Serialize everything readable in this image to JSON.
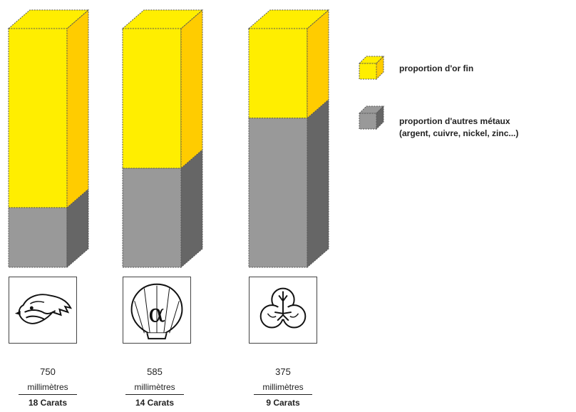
{
  "chart_data": {
    "type": "bar",
    "stacked": true,
    "categories": [
      "18 Carats",
      "14 Carats",
      "9 Carats"
    ],
    "series": [
      {
        "name": "proportion d'autres métaux",
        "values": [
          250,
          415,
          625
        ],
        "color": "#999999",
        "side_color": "#666666"
      },
      {
        "name": "proportion d'or fin",
        "values": [
          750,
          585,
          375
        ],
        "color": "#ffee00",
        "side_color": "#ffcc00"
      }
    ],
    "ylim": [
      0,
      1000
    ],
    "grid": false,
    "legend_position": "right",
    "bars": [
      {
        "fineness": "750",
        "unit": "millimètres",
        "carats": "18 Carats",
        "hallmark_icon": "eagle-head-icon"
      },
      {
        "fineness": "585",
        "unit": "millimètres",
        "carats": "14 Carats",
        "hallmark_icon": "shell-alpha-icon"
      },
      {
        "fineness": "375",
        "unit": "millimètres",
        "carats": "9 Carats",
        "hallmark_icon": "trefoil-icon"
      }
    ]
  },
  "legend": {
    "items": [
      {
        "label": "proportion d'or fin",
        "color": "#ffee00",
        "side_color": "#ffcc00"
      },
      {
        "label": "proportion d'autres métaux",
        "label_line2": "(argent, cuivre, nickel, zinc...)",
        "color": "#999999",
        "side_color": "#666666"
      }
    ]
  }
}
